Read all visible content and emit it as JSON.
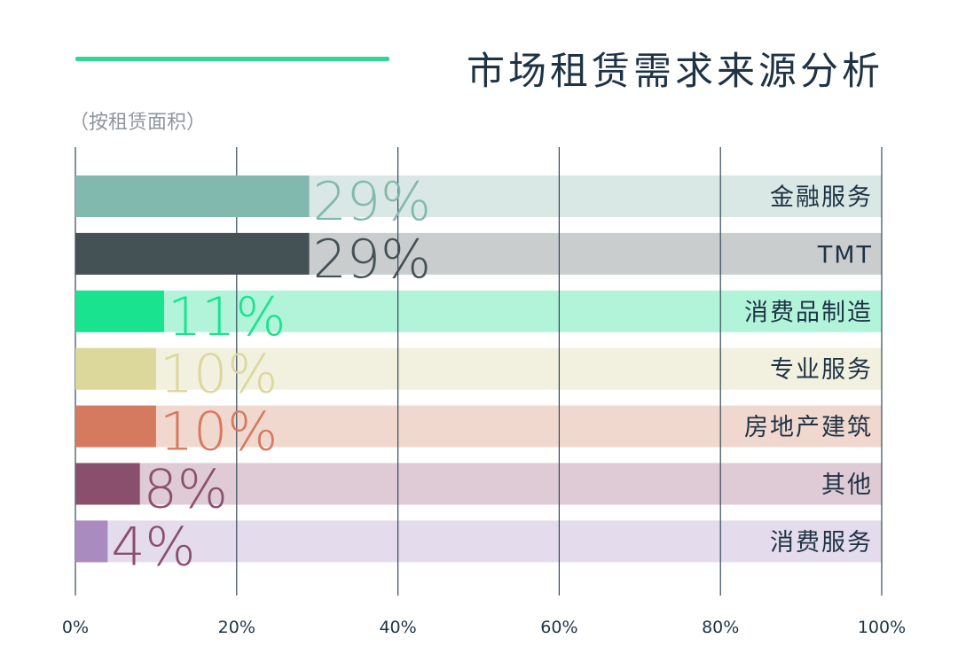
{
  "header": {
    "title": "市场租赁需求来源分析",
    "subtitle": "（按租赁面积）",
    "accent_color": "#2ed98f"
  },
  "chart_data": {
    "type": "bar",
    "orientation": "horizontal",
    "title": "市场租赁需求来源分析",
    "subtitle": "（按租赁面积）",
    "categories": [
      "金融服务",
      "TMT",
      "消费品制造",
      "专业服务",
      "房地产建筑",
      "其他",
      "消费服务"
    ],
    "values": [
      29,
      29,
      11,
      10,
      10,
      8,
      4
    ],
    "value_labels": [
      "29%",
      "29%",
      "11%",
      "10%",
      "10%",
      "8%",
      "4%"
    ],
    "xlim": [
      0,
      100
    ],
    "x_ticks": [
      0,
      20,
      40,
      60,
      80,
      100
    ],
    "x_tick_labels": [
      "0%",
      "20%",
      "40%",
      "60%",
      "80%",
      "100%"
    ],
    "grid": "vertical",
    "bar_colors": [
      "#82b9ae",
      "#445155",
      "#1ae38f",
      "#dcd79b",
      "#d57a5f",
      "#8a4f6c",
      "#a98bbf"
    ],
    "track_colors": [
      "#d9e8e5",
      "#c9cdcd",
      "#b2f4da",
      "#f2f0df",
      "#f1d8cf",
      "#decbd6",
      "#e4dbec"
    ],
    "label_colors": [
      "#82b9ae",
      "#445155",
      "#1ae38f",
      "#dcd79b",
      "#d57a5f",
      "#8a4f6c",
      "#8a4f6c"
    ]
  }
}
